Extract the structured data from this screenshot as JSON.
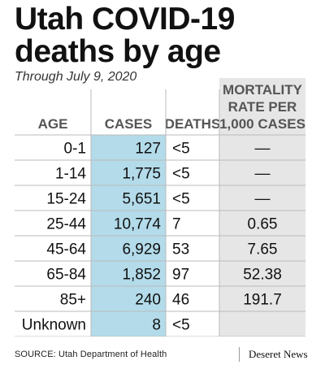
{
  "header": {
    "title_line1": "Utah COVID-19",
    "title_line2": "deaths by age",
    "subtitle": "Through July 9, 2020"
  },
  "footer": {
    "source": "SOURCE: Utah Department of Health",
    "logo": "Deseret News"
  },
  "colors": {
    "cases_highlight": "#b3dbea",
    "rate_highlight": "#e6e6e6",
    "header_text": "#555555",
    "grid": "#bbbbbb"
  },
  "chart_data": {
    "type": "table",
    "columns": [
      "AGE",
      "CASES",
      "DEATHS",
      "MORTALITY RATE PER 1,000 CASES"
    ],
    "column_header_lines": [
      [
        "AGE"
      ],
      [
        "CASES"
      ],
      [
        "DEATHS"
      ],
      [
        "MORTALITY",
        "RATE PER",
        "1,000 CASES"
      ]
    ],
    "rows": [
      [
        "0-1",
        "127",
        "<5",
        "—"
      ],
      [
        "1-14",
        "1,775",
        "<5",
        "—"
      ],
      [
        "15-24",
        "5,651",
        "<5",
        "—"
      ],
      [
        "25-44",
        "10,774",
        "7",
        "0.65"
      ],
      [
        "45-64",
        "6,929",
        "53",
        "7.65"
      ],
      [
        "65-84",
        "1,852",
        "97",
        "52.38"
      ],
      [
        "85+",
        "240",
        "46",
        "191.7"
      ],
      [
        "Unknown",
        "8",
        "<5",
        ""
      ]
    ]
  }
}
